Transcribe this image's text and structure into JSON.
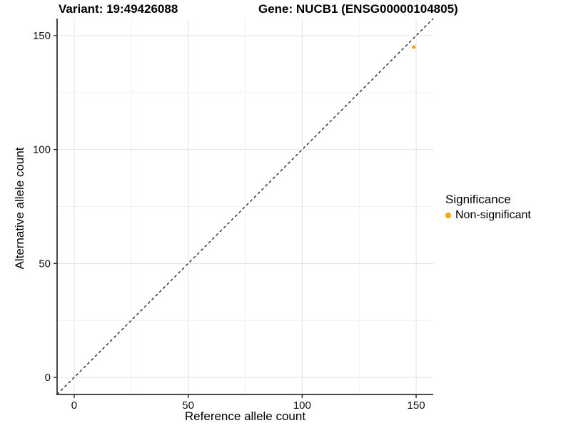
{
  "chart_data": {
    "type": "scatter",
    "title_variant": "Variant: 19:49426088",
    "title_gene": "Gene: NUCB1 (ENSG00000104805)",
    "xlabel": "Reference allele count",
    "ylabel": "Alternative allele count",
    "xlim": [
      -7.5,
      157.5
    ],
    "ylim": [
      -7.5,
      157.5
    ],
    "x_ticks": [
      0,
      50,
      100,
      150
    ],
    "y_ticks": [
      0,
      50,
      100,
      150
    ],
    "x_minor_ticks": [
      25,
      75,
      125
    ],
    "y_minor_ticks": [
      25,
      75,
      125
    ],
    "grid": true,
    "series": [
      {
        "name": "Non-significant",
        "color": "#FFA500",
        "points": [
          {
            "x": 149,
            "y": 145
          }
        ]
      }
    ],
    "reference_line": {
      "slope": 1,
      "intercept": 0,
      "style": "dashed",
      "color": "#1a1a1a"
    },
    "legend": {
      "title": "Significance",
      "position": "right",
      "items": [
        {
          "label": "Non-significant",
          "color": "#FFA500"
        }
      ]
    },
    "style": {
      "grid_major": "#e3e3e3",
      "grid_minor": "#f1f1f1",
      "axis_line": "#333333",
      "tick_label_color": "#111111",
      "background": "#ffffff"
    }
  }
}
